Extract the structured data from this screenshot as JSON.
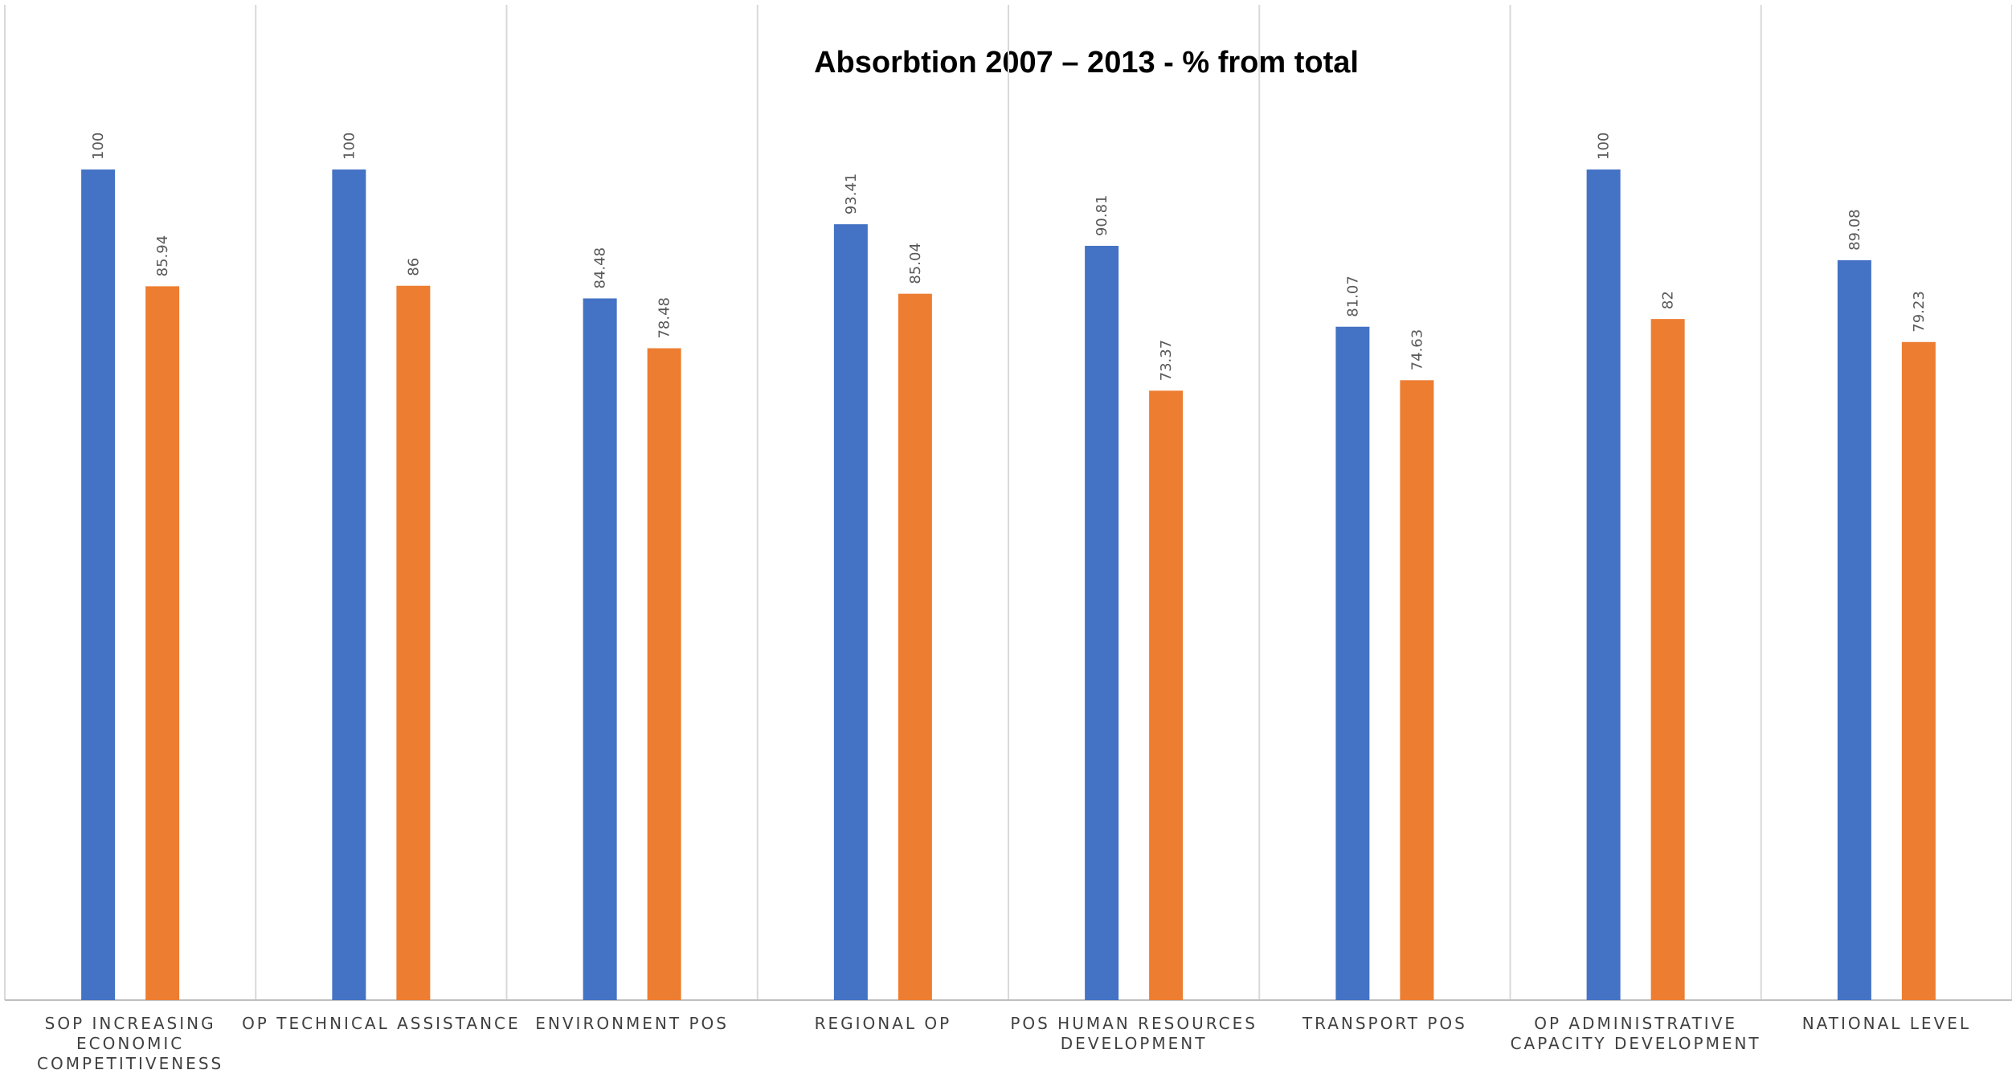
{
  "chart_data": {
    "type": "bar",
    "title": "Absorbtion 2007 – 2013 - % from total",
    "xlabel": "",
    "ylabel": "",
    "ylim": [
      0,
      100
    ],
    "grid": "vertical category separators",
    "legend": "none",
    "categories": [
      [
        "SOP INCREASING",
        "ECONOMIC",
        "COMPETITIVENESS"
      ],
      [
        "OP TECHNICAL ASSISTANCE"
      ],
      [
        "ENVIRONMENT POS"
      ],
      [
        "REGIONAL OP"
      ],
      [
        "POS HUMAN RESOURCES",
        "DEVELOPMENT"
      ],
      [
        "TRANSPORT POS"
      ],
      [
        "OP ADMINISTRATIVE",
        "CAPACITY DEVELOPMENT"
      ],
      [
        "NATIONAL LEVEL"
      ]
    ],
    "series": [
      {
        "color": "#4472C4",
        "values": [
          100,
          100,
          84.48,
          93.41,
          90.81,
          81.07,
          100,
          89.08
        ],
        "labels": [
          "100",
          "100",
          "84.48",
          "93.41",
          "90.81",
          "81.07",
          "100",
          "89.08"
        ]
      },
      {
        "color": "#ED7D31",
        "values": [
          85.94,
          86,
          78.48,
          85.04,
          73.37,
          74.63,
          82,
          79.23
        ],
        "labels": [
          "85.94",
          "86",
          "78.48",
          "85.04",
          "73.37",
          "74.63",
          "82",
          "79.23"
        ]
      }
    ],
    "colors": {
      "gridline": "#D9D9D9",
      "axis": "#BFBFBF"
    }
  }
}
